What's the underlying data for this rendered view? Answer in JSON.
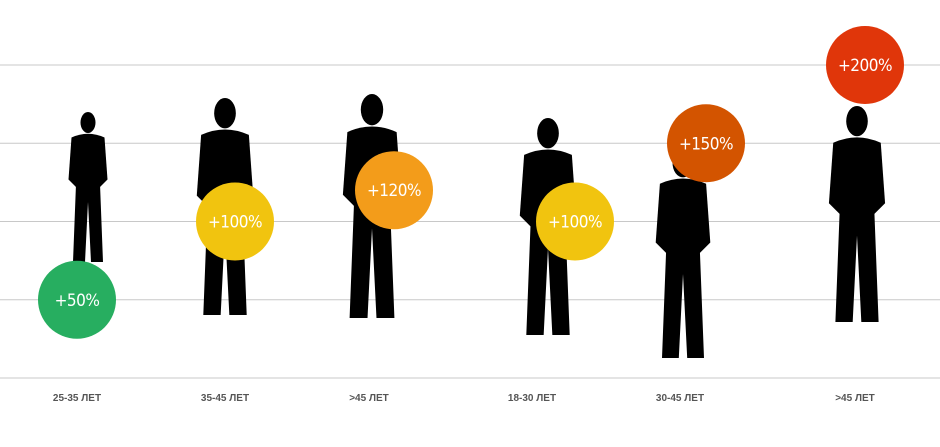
{
  "chart_data": {
    "type": "bubble-infographic",
    "categories": [
      "25-35 ЛЕТ",
      "35-45 ЛЕТ",
      ">45 ЛЕТ",
      "18-30 ЛЕТ",
      "30-45 ЛЕТ",
      ">45 ЛЕТ"
    ],
    "values": [
      50,
      100,
      120,
      100,
      150,
      200
    ],
    "value_labels": [
      "+50%",
      "+100%",
      "+120%",
      "+100%",
      "+150%",
      "+200%"
    ],
    "colors": [
      "#27ae60",
      "#f1c40f",
      "#f39c1a",
      "#f1c40f",
      "#d35400",
      "#e0360a"
    ],
    "ylim": [
      0,
      200
    ],
    "yticks": [
      0,
      50,
      100,
      150,
      200
    ],
    "grid": true
  }
}
